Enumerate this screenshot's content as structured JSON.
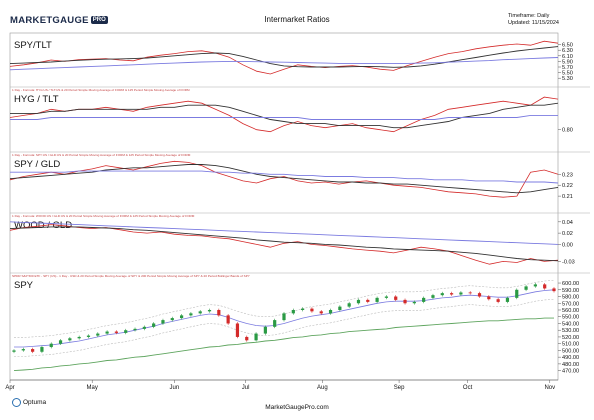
{
  "header": {
    "logo_text": "MARKETGAUGE",
    "logo_badge": "PRO",
    "title": "Intermarket Ratios",
    "timeframe": "Timeframe: Daily",
    "updated": "Updated: 11/15/2024"
  },
  "footer": {
    "url": "MarketGaugePro.com",
    "brand": "Optuma"
  },
  "colors": {
    "ratio_line": "#d42a2a",
    "ma20": "#333333",
    "ma125": "#7b7be0",
    "candle_up": "#2a9a44",
    "candle_down": "#d42a2a",
    "bollinger": "#bbbbbb",
    "ma200": "#5fa55f"
  },
  "chart_data": [
    {
      "type": "line",
      "name": "SPY/TLT",
      "title": "SPY/TLT",
      "subtitle": "",
      "ylim": [
        5.2,
        6.7
      ],
      "yticks": [
        6.5,
        6.3,
        6.1,
        5.9,
        5.7,
        5.5,
        5.3
      ],
      "ytick_labels": [
        "6.50",
        "6.30",
        "6.10",
        "5.90",
        "5.70",
        "5.50",
        "5.30"
      ],
      "series": [
        {
          "role": "ratio",
          "values": [
            5.72,
            5.78,
            5.85,
            5.95,
            5.9,
            5.96,
            5.98,
            6.0,
            5.95,
            5.92,
            6.05,
            6.12,
            6.18,
            6.25,
            6.28,
            6.2,
            6.05,
            5.78,
            5.55,
            5.45,
            5.62,
            5.78,
            5.72,
            5.68,
            5.72,
            5.75,
            5.7,
            5.62,
            5.58,
            5.75,
            5.9,
            6.05,
            6.18,
            6.25,
            6.35,
            6.42,
            6.48,
            6.52,
            6.48,
            6.62,
            6.55
          ]
        },
        {
          "role": "ma20",
          "values": [
            5.82,
            5.84,
            5.86,
            5.88,
            5.91,
            5.94,
            5.96,
            5.98,
            5.99,
            6.0,
            6.02,
            6.06,
            6.1,
            6.14,
            6.18,
            6.2,
            6.18,
            6.08,
            5.95,
            5.82,
            5.74,
            5.71,
            5.7,
            5.7,
            5.7,
            5.71,
            5.72,
            5.71,
            5.69,
            5.7,
            5.74,
            5.8,
            5.88,
            5.96,
            6.04,
            6.12,
            6.2,
            6.27,
            6.33,
            6.38,
            6.43
          ]
        },
        {
          "role": "ma125",
          "values": [
            5.6,
            5.62,
            5.64,
            5.66,
            5.68,
            5.7,
            5.72,
            5.74,
            5.76,
            5.78,
            5.8,
            5.82,
            5.84,
            5.86,
            5.88,
            5.89,
            5.9,
            5.9,
            5.89,
            5.88,
            5.87,
            5.86,
            5.85,
            5.84,
            5.83,
            5.83,
            5.82,
            5.82,
            5.82,
            5.83,
            5.84,
            5.85,
            5.87,
            5.89,
            5.91,
            5.93,
            5.96,
            5.98,
            6.0,
            6.02,
            6.04
          ]
        }
      ]
    },
    {
      "type": "line",
      "name": "HYG / TLT",
      "title": "HYG / TLT",
      "subtitle": "1 Day - Formula: HYG:US / TLT:US & 20 Period Simple Moving Average of FORM & 125 Period Simple Moving Average of FORM",
      "ylim": [
        0.72,
        0.98
      ],
      "yticks": [
        0.8
      ],
      "ytick_labels": [
        "0.80"
      ],
      "series": [
        {
          "role": "ratio",
          "values": [
            0.86,
            0.87,
            0.88,
            0.9,
            0.89,
            0.9,
            0.9,
            0.91,
            0.9,
            0.89,
            0.91,
            0.92,
            0.93,
            0.94,
            0.93,
            0.9,
            0.87,
            0.83,
            0.8,
            0.79,
            0.82,
            0.84,
            0.82,
            0.81,
            0.82,
            0.83,
            0.81,
            0.8,
            0.79,
            0.82,
            0.85,
            0.87,
            0.9,
            0.91,
            0.92,
            0.93,
            0.94,
            0.93,
            0.92,
            0.96,
            0.95
          ]
        },
        {
          "role": "ma20",
          "values": [
            0.88,
            0.88,
            0.88,
            0.89,
            0.89,
            0.9,
            0.9,
            0.9,
            0.9,
            0.9,
            0.9,
            0.91,
            0.91,
            0.92,
            0.92,
            0.92,
            0.91,
            0.89,
            0.87,
            0.85,
            0.84,
            0.83,
            0.83,
            0.83,
            0.82,
            0.82,
            0.82,
            0.82,
            0.81,
            0.81,
            0.82,
            0.83,
            0.84,
            0.86,
            0.87,
            0.88,
            0.9,
            0.91,
            0.92,
            0.92,
            0.93
          ]
        },
        {
          "role": "ma125",
          "values": [
            0.85,
            0.85,
            0.85,
            0.86,
            0.86,
            0.86,
            0.86,
            0.86,
            0.86,
            0.86,
            0.86,
            0.86,
            0.86,
            0.86,
            0.86,
            0.86,
            0.86,
            0.86,
            0.86,
            0.86,
            0.86,
            0.86,
            0.85,
            0.85,
            0.85,
            0.85,
            0.85,
            0.85,
            0.85,
            0.85,
            0.85,
            0.85,
            0.86,
            0.86,
            0.86,
            0.86,
            0.86,
            0.86,
            0.87,
            0.87,
            0.87
          ]
        }
      ]
    },
    {
      "type": "line",
      "name": "SPY / GLD",
      "title": "SPY / GLD",
      "subtitle": "1 Day - Formula: SPY:US / GLD:US & 20 Period Simple Moving Average of FORM & 125 Period Simple Moving Average of FORM",
      "ylim": [
        0.2,
        0.245
      ],
      "yticks": [
        0.23,
        0.22,
        0.21
      ],
      "ytick_labels": [
        "0.23",
        "0.22",
        "0.21"
      ],
      "series": [
        {
          "role": "ratio",
          "values": [
            0.225,
            0.228,
            0.23,
            0.232,
            0.23,
            0.233,
            0.235,
            0.238,
            0.236,
            0.234,
            0.237,
            0.24,
            0.242,
            0.241,
            0.238,
            0.232,
            0.228,
            0.224,
            0.222,
            0.226,
            0.228,
            0.224,
            0.222,
            0.223,
            0.221,
            0.223,
            0.224,
            0.222,
            0.22,
            0.219,
            0.218,
            0.216,
            0.214,
            0.213,
            0.212,
            0.21,
            0.209,
            0.21,
            0.232,
            0.234,
            0.23
          ]
        },
        {
          "role": "ma20",
          "values": [
            0.226,
            0.227,
            0.228,
            0.229,
            0.23,
            0.231,
            0.232,
            0.234,
            0.235,
            0.236,
            0.236,
            0.237,
            0.238,
            0.239,
            0.239,
            0.238,
            0.236,
            0.233,
            0.23,
            0.228,
            0.227,
            0.226,
            0.225,
            0.224,
            0.223,
            0.223,
            0.222,
            0.222,
            0.221,
            0.221,
            0.22,
            0.219,
            0.218,
            0.217,
            0.216,
            0.215,
            0.214,
            0.213,
            0.214,
            0.216,
            0.218
          ]
        },
        {
          "role": "ma125",
          "values": [
            0.232,
            0.232,
            0.232,
            0.232,
            0.232,
            0.233,
            0.233,
            0.233,
            0.233,
            0.233,
            0.233,
            0.233,
            0.233,
            0.233,
            0.233,
            0.232,
            0.232,
            0.231,
            0.231,
            0.23,
            0.23,
            0.229,
            0.229,
            0.228,
            0.228,
            0.228,
            0.227,
            0.227,
            0.227,
            0.226,
            0.226,
            0.225,
            0.225,
            0.225,
            0.224,
            0.224,
            0.224,
            0.223,
            0.223,
            0.223,
            0.222
          ]
        }
      ]
    },
    {
      "type": "line",
      "name": "WOOD / GLD",
      "title": "WOOD / GLD",
      "subtitle": "1 Day - Formula: WOOD:US / GLD:US & 20 Period Simple Moving Average of FORM & 125 Period Simple Moving Average of FORM",
      "ylim": [
        -0.04,
        0.045
      ],
      "yticks": [
        0.04,
        0.02,
        0.0,
        -0.03
      ],
      "ytick_labels": [
        "0.04",
        "0.02",
        "0.00",
        "-0.03"
      ],
      "series": [
        {
          "role": "ratio",
          "values": [
            0.025,
            0.03,
            0.032,
            0.035,
            0.033,
            0.03,
            0.028,
            0.03,
            0.026,
            0.022,
            0.02,
            0.022,
            0.018,
            0.016,
            0.015,
            0.012,
            0.01,
            0.005,
            0.0,
            -0.005,
            0.002,
            0.005,
            0.0,
            -0.002,
            -0.005,
            -0.008,
            -0.01,
            -0.012,
            -0.015,
            -0.01,
            -0.005,
            -0.008,
            -0.012,
            -0.02,
            -0.028,
            -0.035,
            -0.03,
            -0.032,
            -0.025,
            -0.03,
            -0.028
          ]
        },
        {
          "role": "ma20",
          "values": [
            0.028,
            0.029,
            0.03,
            0.031,
            0.031,
            0.031,
            0.03,
            0.029,
            0.028,
            0.026,
            0.025,
            0.023,
            0.021,
            0.019,
            0.017,
            0.015,
            0.013,
            0.011,
            0.008,
            0.006,
            0.004,
            0.003,
            0.002,
            0.0,
            -0.001,
            -0.003,
            -0.005,
            -0.006,
            -0.008,
            -0.009,
            -0.01,
            -0.011,
            -0.012,
            -0.014,
            -0.016,
            -0.019,
            -0.022,
            -0.025,
            -0.027,
            -0.028,
            -0.029
          ]
        },
        {
          "role": "ma125",
          "values": [
            0.04,
            0.039,
            0.038,
            0.037,
            0.036,
            0.035,
            0.034,
            0.033,
            0.032,
            0.031,
            0.03,
            0.029,
            0.028,
            0.027,
            0.026,
            0.025,
            0.024,
            0.023,
            0.022,
            0.021,
            0.02,
            0.019,
            0.018,
            0.017,
            0.016,
            0.015,
            0.014,
            0.013,
            0.012,
            0.011,
            0.01,
            0.009,
            0.008,
            0.007,
            0.006,
            0.005,
            0.004,
            0.003,
            0.002,
            0.001,
            0.0
          ]
        }
      ]
    },
    {
      "type": "candlestick",
      "name": "SPY",
      "title": "SPY",
      "subtitle": "SPDR S&P 500 ETF - SPY (US) - 1 Day - USD & 20 Period Simple Moving Average of SPY & 200 Period Simple Moving Average of SPY & 20 Period Bollinger Bands of SPY",
      "ylim": [
        465,
        606
      ],
      "yticks": [
        600,
        590,
        580,
        570,
        560,
        550,
        540,
        530,
        520,
        510,
        500,
        490,
        480,
        470
      ],
      "ytick_labels": [
        "600.00",
        "590.00",
        "580.00",
        "570.00",
        "560.00",
        "550.00",
        "540.00",
        "530.00",
        "520.00",
        "510.00",
        "500.00",
        "490.00",
        "480.00",
        "470.00"
      ],
      "close": [
        500,
        502,
        498,
        505,
        510,
        515,
        518,
        520,
        522,
        525,
        528,
        526,
        530,
        532,
        535,
        540,
        545,
        548,
        552,
        555,
        558,
        560,
        552,
        540,
        520,
        515,
        525,
        535,
        545,
        555,
        560,
        562,
        558,
        555,
        560,
        565,
        570,
        575,
        572,
        578,
        580,
        575,
        570,
        572,
        578,
        582,
        585,
        583,
        586,
        585,
        580,
        576,
        572,
        578,
        590,
        595,
        598,
        592,
        588
      ],
      "ma20": [
        505,
        505,
        506,
        507,
        508,
        510,
        512,
        514,
        517,
        520,
        523,
        525,
        527,
        530,
        533,
        536,
        540,
        543,
        546,
        549,
        552,
        554,
        553,
        549,
        544,
        540,
        537,
        536,
        537,
        540,
        544,
        548,
        551,
        553,
        555,
        558,
        561,
        564,
        567,
        570,
        572,
        573,
        573,
        573,
        574,
        576,
        578,
        579,
        581,
        582,
        581,
        580,
        579,
        579,
        581,
        584,
        587,
        589,
        590
      ],
      "ma200": [
        470,
        471,
        472,
        474,
        475,
        477,
        478,
        480,
        481,
        483,
        485,
        486,
        488,
        490,
        491,
        493,
        495,
        497,
        499,
        501,
        503,
        505,
        506,
        508,
        509,
        511,
        512,
        514,
        515,
        517,
        519,
        520,
        522,
        523,
        525,
        526,
        528,
        529,
        530,
        531,
        532,
        534,
        535,
        536,
        537,
        538,
        539,
        540,
        541,
        542,
        543,
        544,
        544,
        545,
        546,
        547,
        547,
        548,
        548
      ]
    }
  ],
  "x_axis": {
    "labels": [
      "Apr",
      "May",
      "Jun",
      "Jul",
      "Aug",
      "Sep",
      "Oct",
      "Nov"
    ],
    "positions": [
      0,
      0.15,
      0.3,
      0.43,
      0.57,
      0.71,
      0.835,
      0.985
    ]
  }
}
